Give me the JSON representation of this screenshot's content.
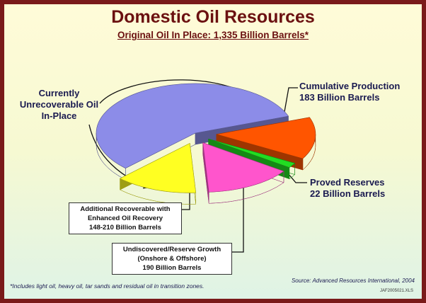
{
  "chart_data": {
    "type": "pie",
    "title": "Domestic Oil Resources",
    "subtitle": "Original Oil In Place: 1,335 Billion Barrels*",
    "categories": [
      "Cumulative Production",
      "Proved Reserves",
      "Undiscovered/Reserve Growth (Onshore & Offshore)",
      "Additional Recoverable with Enhanced Oil Recovery",
      "Currently Unrecoverable Oil In-Place"
    ],
    "values": [
      183,
      22,
      190,
      179,
      761
    ],
    "value_labels": [
      "183 Billion Barrels",
      "22 Billion Barrels",
      "190 Billion Barrels",
      "148-210 Billion Barrels",
      null
    ],
    "colors": [
      "#ff5500",
      "#22dd22",
      "#ff55cc",
      "#ffff22",
      "#8c8ce8"
    ],
    "footnote": "*Includes light oil, heavy oil,  tar sands and residual oil in transition zones.",
    "source": "Source: Advanced Resources International, 2004",
    "file_id": "JAF2005021.XLS"
  }
}
